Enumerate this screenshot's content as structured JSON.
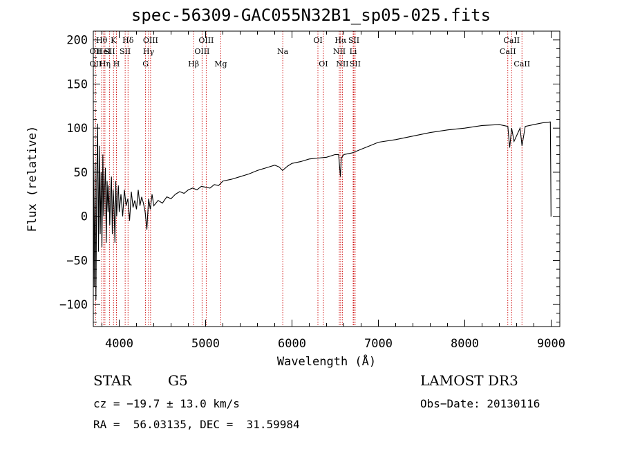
{
  "chart_data": {
    "type": "line",
    "title": "spec-56309-GAC055N32B1_sp05-025.fits",
    "xlabel": "Wavelength (Å)",
    "ylabel": "Flux (relative)",
    "xlim": [
      3700,
      9100
    ],
    "ylim": [
      -125,
      210
    ],
    "xticks": [
      4000,
      5000,
      6000,
      7000,
      8000,
      9000
    ],
    "yticks": [
      -100,
      -50,
      0,
      50,
      100,
      150,
      200
    ],
    "series": [
      {
        "name": "flux",
        "x": [
          3700,
          3710,
          3720,
          3730,
          3740,
          3750,
          3760,
          3770,
          3780,
          3790,
          3800,
          3810,
          3820,
          3830,
          3840,
          3850,
          3860,
          3870,
          3880,
          3890,
          3900,
          3910,
          3920,
          3930,
          3940,
          3950,
          3960,
          3970,
          3980,
          3990,
          4000,
          4020,
          4040,
          4060,
          4080,
          4100,
          4120,
          4140,
          4160,
          4180,
          4200,
          4220,
          4240,
          4260,
          4280,
          4300,
          4320,
          4340,
          4360,
          4380,
          4400,
          4450,
          4500,
          4550,
          4600,
          4650,
          4700,
          4750,
          4800,
          4850,
          4900,
          4950,
          5000,
          5050,
          5100,
          5150,
          5200,
          5300,
          5400,
          5500,
          5600,
          5700,
          5800,
          5850,
          5890,
          5950,
          6000,
          6100,
          6200,
          6300,
          6400,
          6500,
          6540,
          6560,
          6570,
          6600,
          6700,
          6800,
          6900,
          7000,
          7200,
          7400,
          7600,
          7800,
          8000,
          8200,
          8400,
          8498,
          8520,
          8542,
          8570,
          8640,
          8662,
          8700,
          8800,
          8900,
          8990,
          8995,
          8998,
          9000
        ],
        "y": [
          90,
          -80,
          60,
          -95,
          40,
          105,
          -40,
          80,
          -20,
          50,
          -35,
          70,
          0,
          30,
          55,
          -30,
          40,
          5,
          35,
          -10,
          25,
          45,
          -20,
          30,
          10,
          -30,
          40,
          0,
          20,
          35,
          5,
          25,
          0,
          30,
          12,
          20,
          -5,
          28,
          10,
          18,
          8,
          30,
          12,
          22,
          15,
          5,
          -15,
          20,
          8,
          25,
          12,
          18,
          15,
          22,
          20,
          25,
          28,
          26,
          30,
          32,
          30,
          34,
          33,
          32,
          36,
          35,
          40,
          42,
          45,
          48,
          52,
          55,
          58,
          56,
          52,
          57,
          60,
          62,
          65,
          66,
          67,
          70,
          70,
          45,
          66,
          70,
          72,
          76,
          80,
          84,
          87,
          91,
          95,
          98,
          100,
          103,
          104,
          102,
          78,
          100,
          85,
          100,
          80,
          102,
          104,
          106,
          107,
          50,
          0,
          0
        ]
      }
    ],
    "spectral_lines": [
      {
        "label": "OII",
        "x": 3727,
        "row": 1
      },
      {
        "label": "OII",
        "x": 3727,
        "row": 2
      },
      {
        "label": "Hθ",
        "x": 3797,
        "row": 0
      },
      {
        "label": "HeI",
        "x": 3820,
        "row": 1
      },
      {
        "label": "Hη",
        "x": 3835,
        "row": 2
      },
      {
        "label": "SII",
        "x": 3889,
        "row": 1
      },
      {
        "label": "K",
        "x": 3934,
        "row": 0
      },
      {
        "label": "H",
        "x": 3968,
        "row": 2
      },
      {
        "label": "SII",
        "x": 4069,
        "row": 1
      },
      {
        "label": "Hδ",
        "x": 4102,
        "row": 0
      },
      {
        "label": "OIII",
        "x": 4363,
        "row": 0
      },
      {
        "label": "Hγ",
        "x": 4340,
        "row": 1
      },
      {
        "label": "G",
        "x": 4305,
        "row": 2
      },
      {
        "label": "Hβ",
        "x": 4861,
        "row": 2
      },
      {
        "label": "OIII",
        "x": 5007,
        "row": 0
      },
      {
        "label": "OIII",
        "x": 4959,
        "row": 1
      },
      {
        "label": "Mg",
        "x": 5175,
        "row": 2
      },
      {
        "label": "Na",
        "x": 5893,
        "row": 1
      },
      {
        "label": "OI",
        "x": 6300,
        "row": 0
      },
      {
        "label": "OI",
        "x": 6363,
        "row": 2
      },
      {
        "label": "Hα",
        "x": 6563,
        "row": 0
      },
      {
        "label": "NII",
        "x": 6548,
        "row": 1
      },
      {
        "label": "NII",
        "x": 6583,
        "row": 2
      },
      {
        "label": "SII",
        "x": 6716,
        "row": 0
      },
      {
        "label": "Li",
        "x": 6708,
        "row": 1
      },
      {
        "label": "SII",
        "x": 6731,
        "row": 2
      },
      {
        "label": "CaII",
        "x": 8542,
        "row": 0
      },
      {
        "label": "CaII",
        "x": 8498,
        "row": 1
      },
      {
        "label": "CaII",
        "x": 8662,
        "row": 2
      }
    ]
  },
  "info": {
    "object_class": "STAR",
    "subclass": "G5",
    "survey": "LAMOST DR3",
    "redshift_line": "cz = −19.7 ± 13.0 km/s",
    "obs_date_line": "Obs−Date: 20130116",
    "coords_line": "RA =  56.03135, DEC =  31.59984"
  },
  "colors": {
    "spectrum": "#000000",
    "line_marker": "#cc0000",
    "axes": "#000000"
  }
}
